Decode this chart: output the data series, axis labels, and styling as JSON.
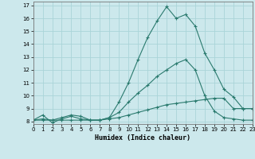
{
  "xlabel": "Humidex (Indice chaleur)",
  "background_color": "#cce8ec",
  "grid_color": "#aad4d8",
  "line_color": "#2a7a6e",
  "xlim": [
    0,
    23
  ],
  "ylim": [
    7.8,
    17.3
  ],
  "xticks": [
    0,
    1,
    2,
    3,
    4,
    5,
    6,
    7,
    8,
    9,
    10,
    11,
    12,
    13,
    14,
    15,
    16,
    17,
    18,
    19,
    20,
    21,
    22,
    23
  ],
  "yticks": [
    8,
    9,
    10,
    11,
    12,
    13,
    14,
    15,
    16,
    17
  ],
  "line1_x": [
    0,
    1,
    2,
    3,
    4,
    5,
    6,
    7,
    8,
    9,
    10,
    11,
    12,
    13,
    14,
    15,
    16,
    17,
    18,
    19,
    20,
    21,
    22,
    23
  ],
  "line1_y": [
    8.1,
    8.5,
    7.9,
    8.2,
    8.4,
    8.2,
    8.1,
    8.1,
    8.3,
    9.5,
    11.0,
    12.8,
    14.5,
    15.8,
    16.9,
    16.0,
    16.3,
    15.4,
    13.3,
    12.0,
    10.5,
    9.9,
    9.0,
    9.0
  ],
  "line2_x": [
    0,
    1,
    2,
    3,
    4,
    5,
    6,
    7,
    8,
    9,
    10,
    11,
    12,
    13,
    14,
    15,
    16,
    17,
    18,
    19,
    20,
    21,
    22,
    23
  ],
  "line2_y": [
    8.1,
    8.1,
    8.1,
    8.3,
    8.5,
    8.4,
    8.1,
    8.1,
    8.3,
    8.7,
    9.5,
    10.2,
    10.8,
    11.5,
    12.0,
    12.5,
    12.8,
    12.0,
    10.0,
    8.8,
    8.3,
    8.2,
    8.1,
    8.1
  ],
  "line3_x": [
    0,
    1,
    2,
    3,
    4,
    5,
    6,
    7,
    8,
    9,
    10,
    11,
    12,
    13,
    14,
    15,
    16,
    17,
    18,
    19,
    20,
    21,
    22,
    23
  ],
  "line3_y": [
    8.1,
    8.2,
    8.1,
    8.1,
    8.1,
    8.1,
    8.1,
    8.1,
    8.2,
    8.3,
    8.5,
    8.7,
    8.9,
    9.1,
    9.3,
    9.4,
    9.5,
    9.6,
    9.7,
    9.8,
    9.8,
    9.0,
    9.0,
    9.0
  ]
}
